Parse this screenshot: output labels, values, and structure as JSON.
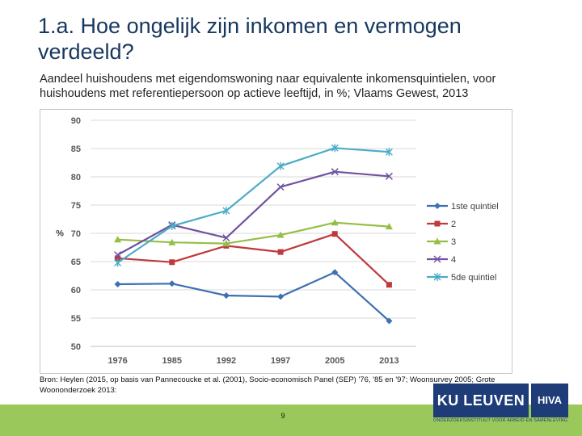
{
  "slide": {
    "title": "1.a. Hoe ongelijk zijn inkomen en vermogen verdeeld?",
    "subtitle": "Aandeel huishoudens met eigendomswoning naar equivalente inkomensquintielen, voor huishoudens met referentiepersoon op actieve leeftijd, in %; Vlaams Gewest, 2013",
    "source": "Bron: Heylen (2015, op basis van Pannecoucke et al. (2001), Socio-economisch Panel (SEP) '76, '85 en '97; Woonsurvey 2005; Grote Woononderzoek 2013:",
    "page_number": "9",
    "logo_ku": "KU LEUVEN",
    "logo_hiva": "HIVA",
    "logo_caption": "ONDERZOEKSINSTITUUT VOOR ARBEID EN SAMENLEVING",
    "bottom_bar_color": "#9bc85a"
  },
  "chart_data": {
    "type": "line",
    "title": "",
    "xlabel": "",
    "ylabel": "%",
    "categories": [
      "1976",
      "1985",
      "1992",
      "1997",
      "2005",
      "2013"
    ],
    "ylim": [
      50,
      90
    ],
    "yticks": [
      "50",
      "55",
      "60",
      "65",
      "70",
      "75",
      "80",
      "85",
      "90"
    ],
    "grid": true,
    "legend_position": "right",
    "series": [
      {
        "name": "1ste quintiel",
        "color": "#3f70b2",
        "marker": "diamond",
        "values": [
          61.0,
          61.1,
          59.0,
          58.8,
          63.1,
          54.5
        ]
      },
      {
        "name": "2",
        "color": "#c0393b",
        "marker": "square",
        "values": [
          65.6,
          64.9,
          67.8,
          66.7,
          69.9,
          60.9
        ]
      },
      {
        "name": "3",
        "color": "#93bf45",
        "marker": "triangle",
        "values": [
          68.9,
          68.4,
          68.2,
          69.7,
          71.9,
          71.2
        ]
      },
      {
        "name": "4",
        "color": "#7252a0",
        "marker": "x",
        "values": [
          66.2,
          71.5,
          69.2,
          78.2,
          80.9,
          80.1
        ]
      },
      {
        "name": "5de quintiel",
        "color": "#4aacc6",
        "marker": "asterisk",
        "values": [
          64.8,
          71.3,
          74.0,
          81.9,
          85.1,
          84.4
        ]
      }
    ]
  }
}
